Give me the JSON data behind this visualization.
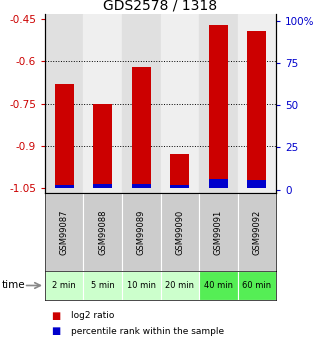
{
  "title": "GDS2578 / 1318",
  "samples": [
    "GSM99087",
    "GSM99088",
    "GSM99089",
    "GSM99090",
    "GSM99091",
    "GSM99092"
  ],
  "time_labels": [
    "2 min",
    "5 min",
    "10 min",
    "20 min",
    "40 min",
    "60 min"
  ],
  "log2_ratio": [
    -0.68,
    -0.75,
    -0.62,
    -0.93,
    -0.47,
    -0.49
  ],
  "percentile_rank": [
    3.0,
    3.5,
    3.5,
    2.5,
    6.0,
    5.5
  ],
  "ylim_left": [
    -1.07,
    -0.43
  ],
  "ylim_right": [
    -2.122,
    104.0
  ],
  "yticks_left": [
    -1.05,
    -0.9,
    -0.75,
    -0.6,
    -0.45
  ],
  "yticks_right": [
    0,
    25,
    50,
    75,
    100
  ],
  "ytick_labels_left": [
    "-1.05",
    "-0.9",
    "-0.75",
    "-0.6",
    "-0.45"
  ],
  "ytick_labels_right": [
    "0",
    "25",
    "50",
    "75",
    "100%"
  ],
  "bar_bottom": -1.05,
  "red_color": "#cc0000",
  "blue_color": "#0000cc",
  "gray_bg": "#cccccc",
  "green_bg": [
    "#ccffcc",
    "#ccffcc",
    "#ccffcc",
    "#ccffcc",
    "#55ee55",
    "#55ee55"
  ],
  "left_tick_color": "#cc0000",
  "right_tick_color": "#0000cc",
  "title_fontsize": 10,
  "tick_fontsize": 7.5,
  "bar_width": 0.5
}
